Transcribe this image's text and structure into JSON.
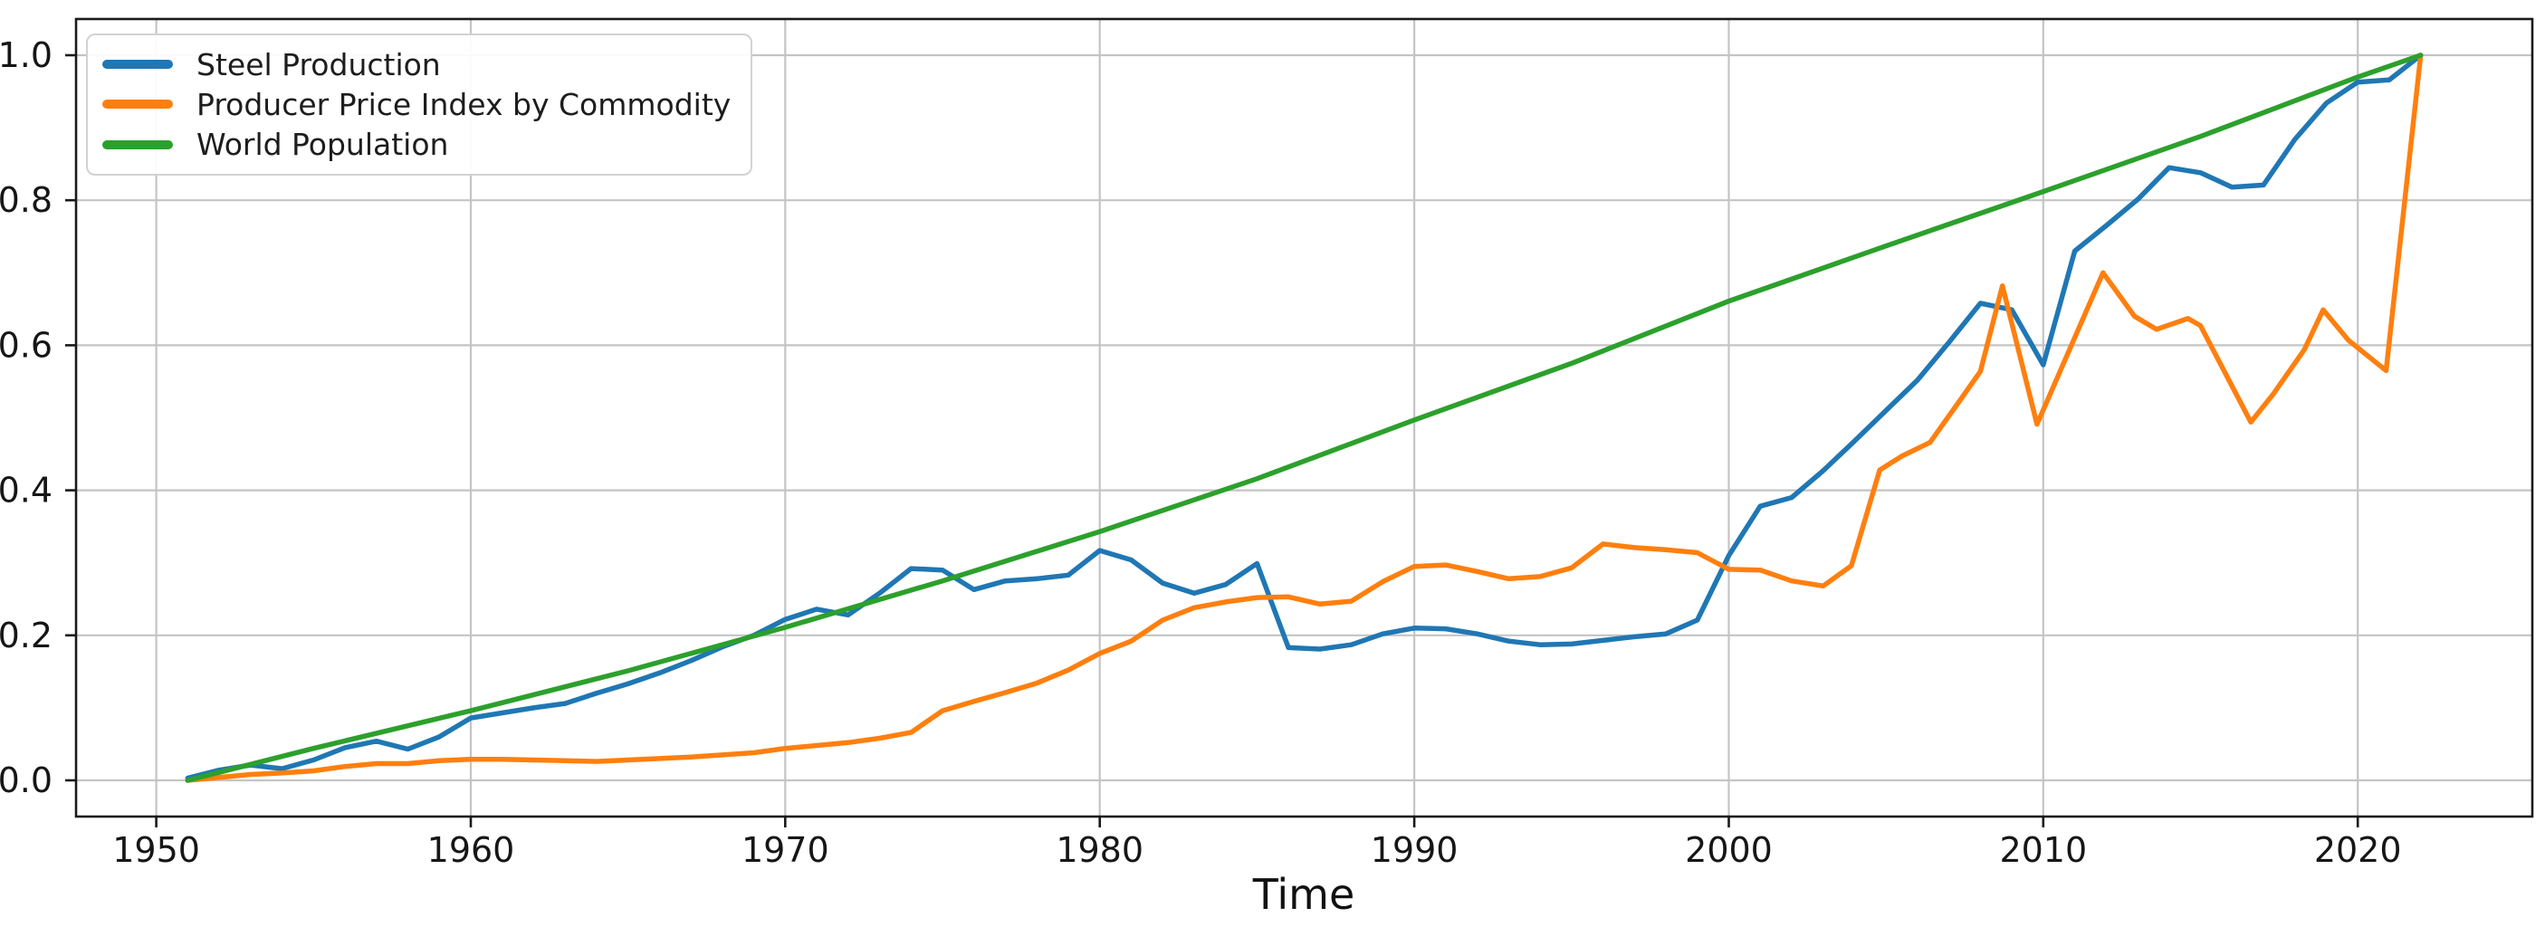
{
  "figure": {
    "background_color": "#ffffff",
    "text_color": "#1a1a1a",
    "grid_color": "#c4c4c4"
  },
  "chart_data": {
    "type": "line",
    "title": "",
    "xlabel": "Time",
    "ylabel": "",
    "grid": true,
    "legend_position": "upper left",
    "xlim": [
      1947.45,
      2025.55
    ],
    "ylim": [
      -0.05,
      1.05
    ],
    "x_ticks": [
      1950,
      1960,
      1970,
      1980,
      1990,
      2000,
      2010,
      2020
    ],
    "x_tick_labels": [
      "1950",
      "1960",
      "1970",
      "1980",
      "1990",
      "2000",
      "2010",
      "2020"
    ],
    "y_ticks": [
      0.0,
      0.2,
      0.4,
      0.6,
      0.8,
      1.0
    ],
    "y_tick_labels": [
      "0.0",
      "0.2",
      "0.4",
      "0.6",
      "0.8",
      "1.0"
    ],
    "series": [
      {
        "id": "steel-production",
        "name": "Steel Production",
        "color": "#1f77b4",
        "points": [
          [
            1951,
            0.003
          ],
          [
            1952,
            0.014
          ],
          [
            1953,
            0.021
          ],
          [
            1954,
            0.016
          ],
          [
            1955,
            0.028
          ],
          [
            1956,
            0.045
          ],
          [
            1957,
            0.054
          ],
          [
            1958,
            0.043
          ],
          [
            1959,
            0.06
          ],
          [
            1960,
            0.086
          ],
          [
            1961,
            0.093
          ],
          [
            1962,
            0.1
          ],
          [
            1963,
            0.106
          ],
          [
            1964,
            0.12
          ],
          [
            1965,
            0.133
          ],
          [
            1966,
            0.148
          ],
          [
            1967,
            0.165
          ],
          [
            1968,
            0.184
          ],
          [
            1969,
            0.2
          ],
          [
            1970,
            0.222
          ],
          [
            1971,
            0.236
          ],
          [
            1972,
            0.228
          ],
          [
            1973,
            0.258
          ],
          [
            1974,
            0.292
          ],
          [
            1975,
            0.29
          ],
          [
            1976,
            0.263
          ],
          [
            1977,
            0.275
          ],
          [
            1978,
            0.278
          ],
          [
            1979,
            0.283
          ],
          [
            1980,
            0.317
          ],
          [
            1981,
            0.304
          ],
          [
            1982,
            0.272
          ],
          [
            1983,
            0.258
          ],
          [
            1984,
            0.27
          ],
          [
            1985,
            0.299
          ],
          [
            1986,
            0.183
          ],
          [
            1987,
            0.181
          ],
          [
            1988,
            0.187
          ],
          [
            1989,
            0.202
          ],
          [
            1990,
            0.21
          ],
          [
            1991,
            0.209
          ],
          [
            1992,
            0.202
          ],
          [
            1993,
            0.192
          ],
          [
            1994,
            0.187
          ],
          [
            1995,
            0.188
          ],
          [
            1996,
            0.193
          ],
          [
            1997,
            0.198
          ],
          [
            1998,
            0.202
          ],
          [
            1999,
            0.221
          ],
          [
            2000,
            0.31
          ],
          [
            2001,
            0.378
          ],
          [
            2002,
            0.39
          ],
          [
            2003,
            0.427
          ],
          [
            2004,
            0.468
          ],
          [
            2005,
            0.51
          ],
          [
            2006,
            0.552
          ],
          [
            2007,
            0.604
          ],
          [
            2008,
            0.658
          ],
          [
            2009,
            0.649
          ],
          [
            2010,
            0.573
          ],
          [
            2011,
            0.73
          ],
          [
            2012,
            0.765
          ],
          [
            2013,
            0.801
          ],
          [
            2014,
            0.845
          ],
          [
            2015,
            0.838
          ],
          [
            2016,
            0.818
          ],
          [
            2017,
            0.821
          ],
          [
            2018,
            0.884
          ],
          [
            2019,
            0.934
          ],
          [
            2020,
            0.963
          ],
          [
            2021,
            0.966
          ],
          [
            2022,
            1.0
          ]
        ]
      },
      {
        "id": "producer-price-index",
        "name": "Producer Price Index by Commodity",
        "color": "#ff7f0e",
        "points": [
          [
            1951,
            0.0
          ],
          [
            1952,
            0.004
          ],
          [
            1953,
            0.008
          ],
          [
            1954,
            0.01
          ],
          [
            1955,
            0.013
          ],
          [
            1956,
            0.019
          ],
          [
            1957,
            0.023
          ],
          [
            1958,
            0.023
          ],
          [
            1959,
            0.027
          ],
          [
            1960,
            0.029
          ],
          [
            1961,
            0.029
          ],
          [
            1962,
            0.028
          ],
          [
            1963,
            0.027
          ],
          [
            1964,
            0.026
          ],
          [
            1965,
            0.028
          ],
          [
            1966,
            0.03
          ],
          [
            1967,
            0.032
          ],
          [
            1968,
            0.035
          ],
          [
            1969,
            0.038
          ],
          [
            1970,
            0.044
          ],
          [
            1971,
            0.048
          ],
          [
            1972,
            0.052
          ],
          [
            1973,
            0.058
          ],
          [
            1974,
            0.066
          ],
          [
            1975,
            0.096
          ],
          [
            1976,
            0.109
          ],
          [
            1977,
            0.121
          ],
          [
            1978,
            0.134
          ],
          [
            1979,
            0.152
          ],
          [
            1980,
            0.175
          ],
          [
            1981,
            0.192
          ],
          [
            1982,
            0.221
          ],
          [
            1983,
            0.238
          ],
          [
            1984,
            0.246
          ],
          [
            1985,
            0.252
          ],
          [
            1986,
            0.253
          ],
          [
            1987,
            0.243
          ],
          [
            1988,
            0.247
          ],
          [
            1989,
            0.274
          ],
          [
            1990,
            0.295
          ],
          [
            1991,
            0.297
          ],
          [
            1992,
            0.288
          ],
          [
            1993,
            0.278
          ],
          [
            1994,
            0.281
          ],
          [
            1995,
            0.293
          ],
          [
            1996,
            0.326
          ],
          [
            1997,
            0.321
          ],
          [
            1998,
            0.318
          ],
          [
            1999,
            0.314
          ],
          [
            2000,
            0.291
          ],
          [
            2001,
            0.29
          ],
          [
            2002,
            0.275
          ],
          [
            2003,
            0.268
          ],
          [
            2003.9,
            0.296
          ],
          [
            2004.8,
            0.428
          ],
          [
            2005.5,
            0.447
          ],
          [
            2006.4,
            0.466
          ],
          [
            2007.4,
            0.527
          ],
          [
            2008,
            0.564
          ],
          [
            2008.7,
            0.682
          ],
          [
            2009.8,
            0.491
          ],
          [
            2011.9,
            0.7
          ],
          [
            2012.9,
            0.64
          ],
          [
            2013.6,
            0.622
          ],
          [
            2014.6,
            0.637
          ],
          [
            2015,
            0.627
          ],
          [
            2016.6,
            0.494
          ],
          [
            2017.3,
            0.532
          ],
          [
            2018.3,
            0.594
          ],
          [
            2018.9,
            0.649
          ],
          [
            2019.7,
            0.607
          ],
          [
            2020.9,
            0.565
          ],
          [
            2022,
            1.0
          ]
        ]
      },
      {
        "id": "world-population",
        "name": "World Population",
        "color": "#2ca02c",
        "points": [
          [
            1951,
            0.0
          ],
          [
            1955,
            0.044
          ],
          [
            1960,
            0.096
          ],
          [
            1965,
            0.151
          ],
          [
            1970,
            0.211
          ],
          [
            1975,
            0.275
          ],
          [
            1980,
            0.343
          ],
          [
            1985,
            0.416
          ],
          [
            1990,
            0.497
          ],
          [
            1995,
            0.575
          ],
          [
            2000,
            0.661
          ],
          [
            2005,
            0.737
          ],
          [
            2010,
            0.812
          ],
          [
            2015,
            0.888
          ],
          [
            2020,
            0.97
          ],
          [
            2022,
            1.0
          ]
        ]
      }
    ]
  },
  "legend": {
    "items": [
      "Steel Production",
      "Producer Price Index by Commodity",
      "World Population"
    ]
  }
}
